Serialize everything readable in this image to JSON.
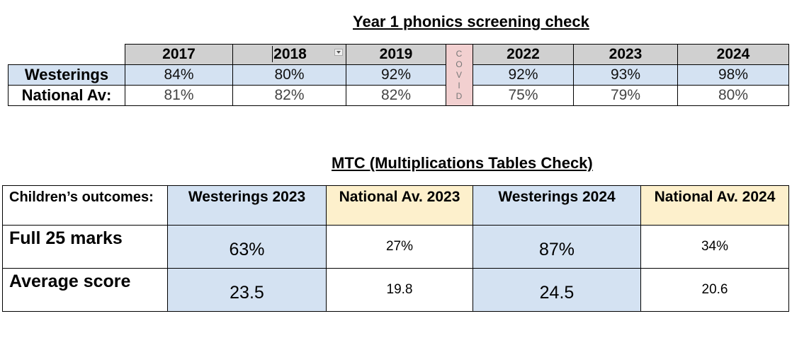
{
  "phonics": {
    "title": "Year 1 phonics screening check",
    "years": [
      "2017",
      "2018",
      "2019",
      "2022",
      "2023",
      "2024"
    ],
    "covid_letters": [
      "C",
      "O",
      "V",
      "I",
      "D"
    ],
    "rows": [
      {
        "label": "Westerings",
        "values": [
          "84%",
          "80%",
          "92%",
          "92%",
          "93%",
          "98%"
        ]
      },
      {
        "label": "National Av:",
        "values": [
          "81%",
          "82%",
          "82%",
          "75%",
          "79%",
          "80%"
        ]
      }
    ]
  },
  "mtc": {
    "title": "MTC (Multiplications Tables Check)",
    "corner_label": "Children’s outcomes:",
    "headers": [
      "Westerings 2023",
      "National Av. 2023",
      "Westerings 2024",
      "National Av. 2024"
    ],
    "rows": [
      {
        "label": "Full 25 marks",
        "values": [
          "63%",
          "27%",
          "87%",
          "34%"
        ]
      },
      {
        "label": "Average score",
        "values": [
          "23.5",
          "19.8",
          "24.5",
          "20.6"
        ]
      }
    ]
  },
  "colors": {
    "blue_fill": "#d4e2f2",
    "header_grey": "#d0d0d0",
    "covid_pink": "#f2d0d0",
    "cream": "#fdf0cc"
  }
}
